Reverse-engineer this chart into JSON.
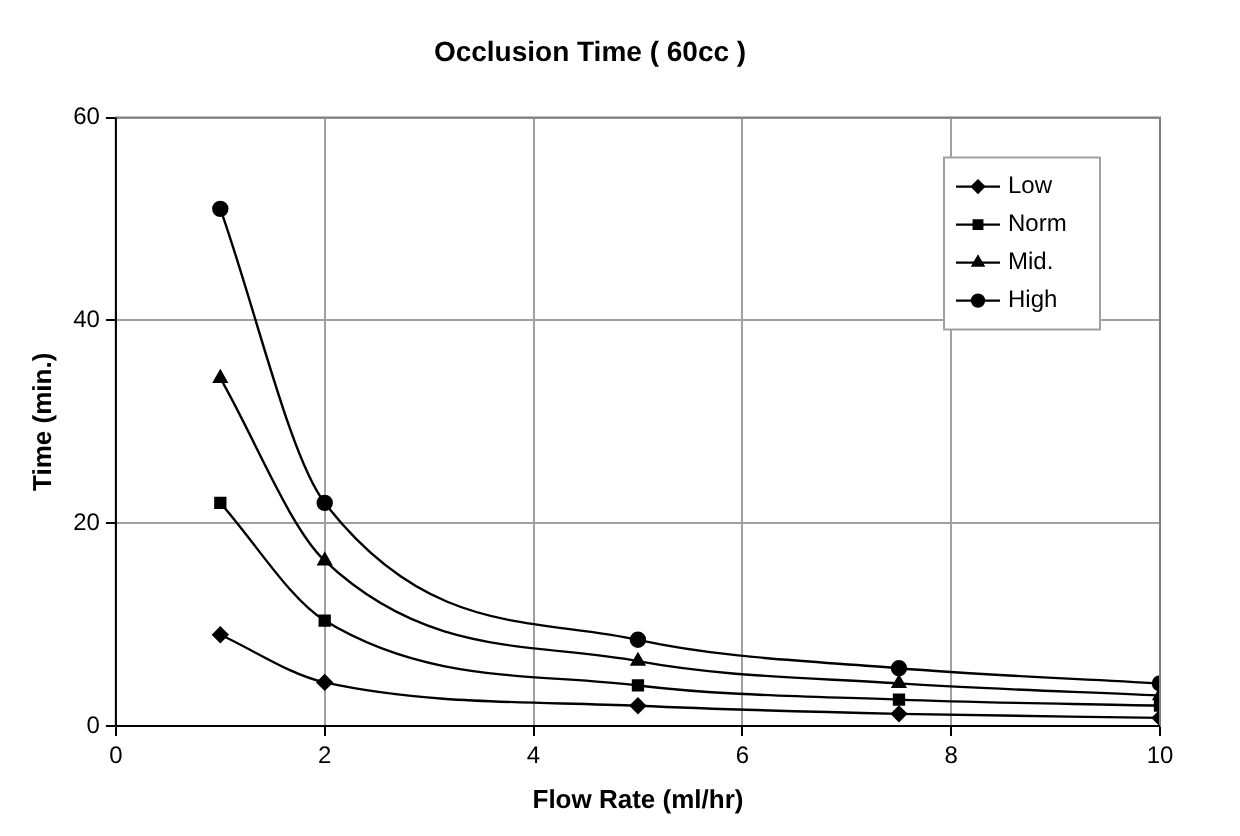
{
  "chart_data": {
    "type": "line",
    "title": "Occlusion Time ( 60cc )",
    "xlabel": "Flow Rate (ml/hr)",
    "ylabel": "Time (min.)",
    "x": [
      1,
      2,
      5,
      7.5,
      10
    ],
    "series": [
      {
        "name": "Low",
        "color": "#000000",
        "marker": "diamond",
        "values": [
          9,
          4.3,
          2,
          1.2,
          0.8
        ]
      },
      {
        "name": "Norm",
        "color": "#000000",
        "marker": "square",
        "values": [
          22,
          10.4,
          4,
          2.6,
          2
        ]
      },
      {
        "name": "Mid.",
        "color": "#000000",
        "marker": "triangle",
        "values": [
          34.3,
          16.3,
          6.4,
          4.2,
          3
        ]
      },
      {
        "name": "High",
        "color": "#000000",
        "marker": "circle",
        "values": [
          51,
          22,
          8.5,
          5.7,
          4.2
        ]
      }
    ],
    "xlim": [
      0,
      10
    ],
    "xticks": [
      0,
      2,
      4,
      6,
      8,
      10
    ],
    "ylim": [
      0,
      60
    ],
    "yticks": [
      0,
      20,
      40,
      60
    ],
    "grid": true,
    "legend": "top right",
    "line_style": "solid"
  }
}
